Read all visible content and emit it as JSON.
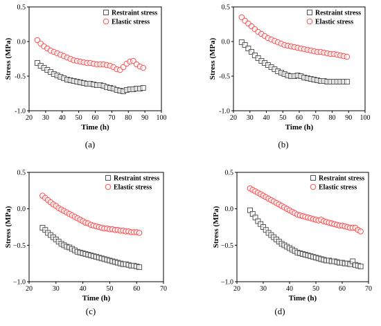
{
  "chart_data": [
    {
      "type": "scatter",
      "caption": "(a)",
      "xlabel": "Time (h)",
      "ylabel": "Stress (MPa)",
      "xlim": [
        20,
        100
      ],
      "ylim": [
        -1.0,
        0.5
      ],
      "xticks": [
        20,
        30,
        40,
        50,
        60,
        70,
        80,
        90,
        100
      ],
      "yticks": [
        -1.0,
        -0.5,
        0.0,
        0.5
      ],
      "ytick_labels": [
        "-1.0",
        "-0.5",
        "0.0",
        "0.5"
      ],
      "grid": false,
      "legend_position": "top-right",
      "series": [
        {
          "name": "Restraint stress",
          "marker": "square",
          "color": "#555555",
          "x": [
            25,
            27,
            29,
            31,
            33,
            35,
            37,
            39,
            41,
            43,
            45,
            47,
            49,
            51,
            53,
            55,
            57,
            59,
            61,
            63,
            65,
            67,
            69,
            71,
            73,
            75,
            77,
            79,
            81,
            83,
            85,
            87,
            89
          ],
          "y": [
            -0.31,
            -0.35,
            -0.38,
            -0.41,
            -0.44,
            -0.47,
            -0.49,
            -0.51,
            -0.53,
            -0.55,
            -0.56,
            -0.57,
            -0.58,
            -0.59,
            -0.6,
            -0.61,
            -0.61,
            -0.62,
            -0.63,
            -0.63,
            -0.64,
            -0.66,
            -0.67,
            -0.68,
            -0.7,
            -0.71,
            -0.72,
            -0.7,
            -0.69,
            -0.69,
            -0.68,
            -0.68,
            -0.67
          ]
        },
        {
          "name": "Elastic stress",
          "marker": "circle",
          "color": "#ff4b4b",
          "x": [
            25,
            27,
            29,
            31,
            33,
            35,
            37,
            39,
            41,
            43,
            45,
            47,
            49,
            51,
            53,
            55,
            57,
            59,
            61,
            63,
            65,
            67,
            69,
            71,
            73,
            75,
            77,
            79,
            81,
            83,
            85,
            87,
            89
          ],
          "y": [
            0.02,
            -0.03,
            -0.07,
            -0.1,
            -0.13,
            -0.15,
            -0.17,
            -0.19,
            -0.21,
            -0.23,
            -0.25,
            -0.27,
            -0.28,
            -0.29,
            -0.3,
            -0.31,
            -0.31,
            -0.32,
            -0.33,
            -0.33,
            -0.33,
            -0.34,
            -0.35,
            -0.37,
            -0.4,
            -0.41,
            -0.37,
            -0.32,
            -0.29,
            -0.28,
            -0.33,
            -0.36,
            -0.38
          ]
        }
      ]
    },
    {
      "type": "scatter",
      "caption": "(b)",
      "xlabel": "Time (h)",
      "ylabel": "Stress (MPa)",
      "xlim": [
        20,
        100
      ],
      "ylim": [
        -1.0,
        0.5
      ],
      "xticks": [
        20,
        30,
        40,
        50,
        60,
        70,
        80,
        90,
        100
      ],
      "yticks": [
        -1.0,
        -0.5,
        0.0,
        0.5
      ],
      "ytick_labels": [
        "-1.0",
        "-0.5",
        "0.0",
        "0.5"
      ],
      "grid": false,
      "legend_position": "top-right",
      "series": [
        {
          "name": "Restraint stress",
          "marker": "square",
          "color": "#555555",
          "x": [
            25,
            27,
            29,
            31,
            33,
            35,
            37,
            39,
            41,
            43,
            45,
            47,
            49,
            51,
            53,
            55,
            57,
            59,
            61,
            63,
            65,
            67,
            69,
            71,
            73,
            75,
            77,
            79,
            81,
            83,
            85,
            87,
            89
          ],
          "y": [
            -0.01,
            -0.05,
            -0.1,
            -0.15,
            -0.2,
            -0.24,
            -0.28,
            -0.31,
            -0.34,
            -0.37,
            -0.4,
            -0.43,
            -0.45,
            -0.47,
            -0.49,
            -0.5,
            -0.5,
            -0.49,
            -0.5,
            -0.52,
            -0.53,
            -0.54,
            -0.55,
            -0.56,
            -0.57,
            -0.57,
            -0.58,
            -0.58,
            -0.58,
            -0.58,
            -0.58,
            -0.58,
            -0.58
          ]
        },
        {
          "name": "Elastic stress",
          "marker": "circle",
          "color": "#ff4b4b",
          "x": [
            25,
            27,
            29,
            31,
            33,
            35,
            37,
            39,
            41,
            43,
            45,
            47,
            49,
            51,
            53,
            55,
            57,
            59,
            61,
            63,
            65,
            67,
            69,
            71,
            73,
            75,
            77,
            79,
            81,
            83,
            85,
            87,
            89
          ],
          "y": [
            0.35,
            0.3,
            0.26,
            0.22,
            0.18,
            0.14,
            0.11,
            0.08,
            0.05,
            0.03,
            0.01,
            -0.01,
            -0.03,
            -0.05,
            -0.06,
            -0.07,
            -0.08,
            -0.09,
            -0.1,
            -0.11,
            -0.12,
            -0.13,
            -0.14,
            -0.15,
            -0.15,
            -0.16,
            -0.17,
            -0.18,
            -0.18,
            -0.19,
            -0.2,
            -0.21,
            -0.22
          ]
        }
      ]
    },
    {
      "type": "scatter",
      "caption": "(c)",
      "xlabel": "Time (h)",
      "ylabel": "Stress (MPa)",
      "xlim": [
        20,
        70
      ],
      "ylim": [
        -1.0,
        0.5
      ],
      "xticks": [
        20,
        30,
        40,
        50,
        60,
        70
      ],
      "yticks": [
        -1.0,
        -0.5,
        0.0,
        0.5
      ],
      "ytick_labels": [
        "−1.0",
        "−0.5",
        "0.0",
        "0.5"
      ],
      "grid": false,
      "legend_position": "top-right",
      "series": [
        {
          "name": "Restraint stress",
          "marker": "square",
          "color": "#555555",
          "x": [
            25,
            26,
            27,
            28,
            29,
            30,
            31,
            32,
            33,
            34,
            35,
            36,
            37,
            38,
            39,
            40,
            41,
            42,
            43,
            44,
            45,
            46,
            47,
            48,
            49,
            50,
            51,
            52,
            53,
            54,
            55,
            56,
            57,
            58,
            59,
            60,
            61
          ],
          "y": [
            -0.26,
            -0.29,
            -0.33,
            -0.36,
            -0.39,
            -0.42,
            -0.45,
            -0.48,
            -0.5,
            -0.52,
            -0.53,
            -0.55,
            -0.57,
            -0.59,
            -0.6,
            -0.61,
            -0.62,
            -0.63,
            -0.64,
            -0.65,
            -0.66,
            -0.67,
            -0.68,
            -0.69,
            -0.7,
            -0.71,
            -0.72,
            -0.73,
            -0.74,
            -0.75,
            -0.76,
            -0.76,
            -0.77,
            -0.78,
            -0.78,
            -0.79,
            -0.8
          ]
        },
        {
          "name": "Elastic stress",
          "marker": "circle",
          "color": "#ff4b4b",
          "x": [
            25,
            26,
            27,
            28,
            29,
            30,
            31,
            32,
            33,
            34,
            35,
            36,
            37,
            38,
            39,
            40,
            41,
            42,
            43,
            44,
            45,
            46,
            47,
            48,
            49,
            50,
            51,
            52,
            53,
            54,
            55,
            56,
            57,
            58,
            59,
            60,
            61
          ],
          "y": [
            0.18,
            0.15,
            0.12,
            0.09,
            0.06,
            0.04,
            0.01,
            -0.01,
            -0.03,
            -0.05,
            -0.07,
            -0.09,
            -0.11,
            -0.13,
            -0.15,
            -0.17,
            -0.19,
            -0.2,
            -0.22,
            -0.23,
            -0.24,
            -0.25,
            -0.26,
            -0.27,
            -0.27,
            -0.28,
            -0.28,
            -0.29,
            -0.29,
            -0.3,
            -0.3,
            -0.31,
            -0.31,
            -0.32,
            -0.32,
            -0.32,
            -0.33
          ]
        }
      ]
    },
    {
      "type": "scatter",
      "caption": "(d)",
      "xlabel": "Time (h)",
      "ylabel": "Stress (MPa)",
      "xlim": [
        20,
        70
      ],
      "ylim": [
        -1.0,
        0.5
      ],
      "xticks": [
        20,
        30,
        40,
        50,
        60,
        70
      ],
      "yticks": [
        -1.0,
        -0.5,
        0.0,
        0.5
      ],
      "ytick_labels": [
        "−1.0",
        "−0.5",
        "0.0",
        "0.5"
      ],
      "grid": false,
      "legend_position": "top-right",
      "series": [
        {
          "name": "Restraint stress",
          "marker": "square",
          "color": "#555555",
          "x": [
            25,
            26,
            27,
            28,
            29,
            30,
            31,
            32,
            33,
            34,
            35,
            36,
            37,
            38,
            39,
            40,
            41,
            42,
            43,
            44,
            45,
            46,
            47,
            48,
            49,
            50,
            51,
            52,
            53,
            54,
            55,
            56,
            57,
            58,
            59,
            60,
            61,
            62,
            63,
            64,
            65,
            66,
            67
          ],
          "y": [
            -0.02,
            -0.07,
            -0.12,
            -0.17,
            -0.21,
            -0.25,
            -0.29,
            -0.33,
            -0.36,
            -0.39,
            -0.42,
            -0.45,
            -0.48,
            -0.5,
            -0.52,
            -0.54,
            -0.56,
            -0.58,
            -0.6,
            -0.61,
            -0.62,
            -0.63,
            -0.64,
            -0.65,
            -0.66,
            -0.67,
            -0.68,
            -0.69,
            -0.7,
            -0.71,
            -0.71,
            -0.72,
            -0.72,
            -0.73,
            -0.74,
            -0.74,
            -0.75,
            -0.75,
            -0.76,
            -0.72,
            -0.77,
            -0.78,
            -0.79
          ]
        },
        {
          "name": "Elastic stress",
          "marker": "circle",
          "color": "#ff4b4b",
          "x": [
            25,
            26,
            27,
            28,
            29,
            30,
            31,
            32,
            33,
            34,
            35,
            36,
            37,
            38,
            39,
            40,
            41,
            42,
            43,
            44,
            45,
            46,
            47,
            48,
            49,
            50,
            51,
            52,
            53,
            54,
            55,
            56,
            57,
            58,
            59,
            60,
            61,
            62,
            63,
            64,
            65,
            66,
            67
          ],
          "y": [
            0.28,
            0.26,
            0.24,
            0.22,
            0.2,
            0.18,
            0.16,
            0.14,
            0.12,
            0.1,
            0.08,
            0.06,
            0.04,
            0.02,
            0.0,
            -0.02,
            -0.04,
            -0.06,
            -0.08,
            -0.09,
            -0.1,
            -0.11,
            -0.12,
            -0.13,
            -0.14,
            -0.15,
            -0.16,
            -0.15,
            -0.17,
            -0.18,
            -0.19,
            -0.2,
            -0.21,
            -0.22,
            -0.23,
            -0.23,
            -0.24,
            -0.25,
            -0.26,
            -0.26,
            -0.26,
            -0.29,
            -0.31
          ]
        }
      ]
    }
  ]
}
